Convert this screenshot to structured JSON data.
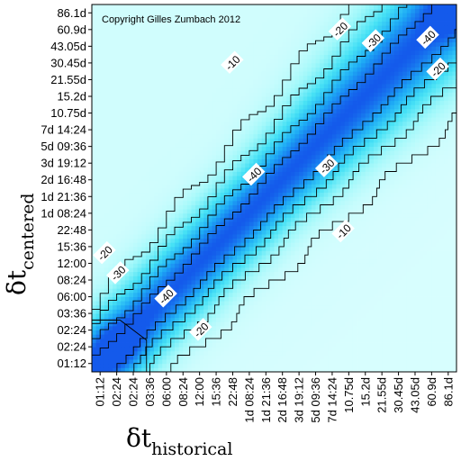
{
  "chart_data": {
    "type": "heatmap",
    "annotation": "Copyright Gilles Zumbach 2012",
    "x_axis": {
      "symbol": "δt",
      "subscript": "historical",
      "ticks": [
        "01:12",
        "02:24",
        "02:24",
        "03:36",
        "06:00",
        "08:24",
        "12:00",
        "15:36",
        "22:48",
        "1d 08:24",
        "1d 21:36",
        "2d 16:48",
        "3d 19:12",
        "5d 09:36",
        "7d 14:24",
        "10.75d",
        "15.2d",
        "21.55d",
        "30.45d",
        "43.05d",
        "60.9d",
        "86.1d"
      ]
    },
    "y_axis": {
      "symbol": "δt",
      "subscript": "centered",
      "ticks": [
        "01:12",
        "02:24",
        "02:24",
        "03:36",
        "06:00",
        "08:24",
        "12:00",
        "15:36",
        "22:48",
        "1d 08:24",
        "1d 21:36",
        "2d 16:48",
        "3d 19:12",
        "5d 09:36",
        "7d 14:24",
        "10.75d",
        "15.2d",
        "21.55d",
        "30.45d",
        "43.05d",
        "60.9d",
        "86.1d"
      ]
    },
    "contour_levels": [
      -10,
      -20,
      -30,
      -40
    ],
    "contour_labels": [
      {
        "text": "-10",
        "i": 8.0,
        "j": 18.0
      },
      {
        "text": "-20",
        "i": 14.5,
        "j": 20.0
      },
      {
        "text": "-30",
        "i": 16.5,
        "j": 19.3
      },
      {
        "text": "-40",
        "i": 19.8,
        "j": 19.5
      },
      {
        "text": "-20",
        "i": 20.4,
        "j": 17.6
      },
      {
        "text": "-40",
        "i": 9.3,
        "j": 11.3
      },
      {
        "text": "-30",
        "i": 13.7,
        "j": 11.8
      },
      {
        "text": "-10",
        "i": 14.7,
        "j": 7.9
      },
      {
        "text": "-40",
        "i": 4.0,
        "j": 4.0
      },
      {
        "text": "-30",
        "i": 1.1,
        "j": 5.4
      },
      {
        "text": "-20",
        "i": 0.3,
        "j": 6.6
      },
      {
        "text": "-20",
        "i": 6.1,
        "j": 2.0
      }
    ]
  }
}
